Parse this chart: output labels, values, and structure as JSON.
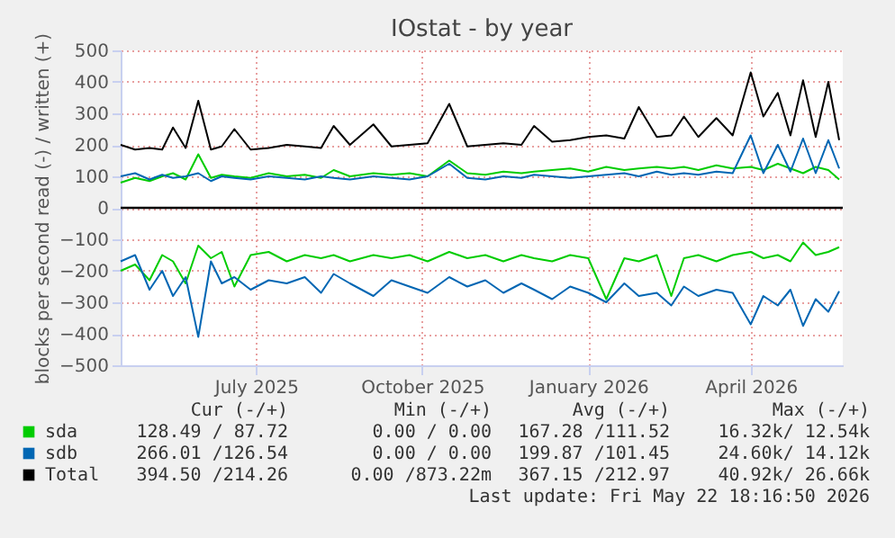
{
  "chart_data": {
    "type": "line",
    "title": "IOstat - by year",
    "ylabel": "blocks per second read (-) / written (+)",
    "x": [
      "2025-04-17",
      "2025-04-25",
      "2025-05-03",
      "2025-05-10",
      "2025-05-16",
      "2025-05-23",
      "2025-05-30",
      "2025-06-06",
      "2025-06-12",
      "2025-06-19",
      "2025-06-28",
      "2025-07-08",
      "2025-07-18",
      "2025-07-28",
      "2025-08-06",
      "2025-08-13",
      "2025-08-22",
      "2025-09-04",
      "2025-09-14",
      "2025-09-24",
      "2025-10-04",
      "2025-10-16",
      "2025-10-26",
      "2025-11-05",
      "2025-11-15",
      "2025-11-25",
      "2025-12-02",
      "2025-12-12",
      "2025-12-22",
      "2026-01-01",
      "2026-01-11",
      "2026-01-21",
      "2026-01-29",
      "2026-02-08",
      "2026-02-16",
      "2026-02-23",
      "2026-03-03",
      "2026-03-13",
      "2026-03-22",
      "2026-04-01",
      "2026-04-08",
      "2026-04-16",
      "2026-04-23",
      "2026-04-30",
      "2026-05-07",
      "2026-05-14",
      "2026-05-20"
    ],
    "xlim": [
      "2025-04-17",
      "2026-05-22"
    ],
    "xticks": [
      {
        "value": "2025-07-01",
        "label": "July 2025"
      },
      {
        "value": "2025-10-01",
        "label": "October 2025"
      },
      {
        "value": "2026-01-01",
        "label": "January 2026"
      },
      {
        "value": "2026-04-01",
        "label": "April 2026"
      }
    ],
    "ylim": [
      -500,
      500
    ],
    "yticks": [
      -500,
      -400,
      -300,
      -200,
      -100,
      0,
      100,
      200,
      300,
      400,
      500
    ],
    "series": [
      {
        "name": "sda",
        "color": "#00cc00",
        "values": [
          80,
          95,
          85,
          100,
          110,
          90,
          170,
          95,
          105,
          100,
          95,
          110,
          100,
          105,
          95,
          120,
          100,
          110,
          105,
          110,
          100,
          150,
          110,
          105,
          115,
          110,
          115,
          120,
          125,
          115,
          130,
          120,
          125,
          130,
          125,
          130,
          120,
          135,
          125,
          130,
          120,
          140,
          125,
          110,
          130,
          120,
          90
        ]
      },
      {
        "name": "sdb",
        "color": "#0066b3",
        "values": [
          100,
          110,
          90,
          105,
          95,
          100,
          110,
          85,
          100,
          95,
          90,
          100,
          95,
          90,
          100,
          95,
          90,
          100,
          95,
          90,
          100,
          140,
          95,
          90,
          100,
          95,
          105,
          100,
          95,
          100,
          105,
          110,
          100,
          115,
          105,
          110,
          105,
          115,
          110,
          230,
          110,
          200,
          115,
          220,
          110,
          215,
          125
        ]
      },
      {
        "name": "Total",
        "color": "#000000",
        "values": [
          200,
          185,
          190,
          185,
          255,
          190,
          340,
          185,
          195,
          250,
          185,
          190,
          200,
          195,
          190,
          260,
          200,
          265,
          195,
          200,
          205,
          330,
          195,
          200,
          205,
          200,
          260,
          210,
          215,
          225,
          230,
          220,
          320,
          225,
          230,
          290,
          225,
          285,
          230,
          430,
          290,
          365,
          230,
          405,
          225,
          400,
          215
        ]
      },
      {
        "color": "#00cc00",
        "values": [
          -200,
          -180,
          -230,
          -150,
          -170,
          -240,
          -120,
          -160,
          -140,
          -250,
          -150,
          -140,
          -170,
          -150,
          -160,
          -150,
          -170,
          -150,
          -160,
          -150,
          -170,
          -140,
          -160,
          -150,
          -170,
          -150,
          -160,
          -170,
          -150,
          -160,
          -290,
          -160,
          -170,
          -150,
          -280,
          -160,
          -150,
          -170,
          -150,
          -140,
          -160,
          -150,
          -170,
          -110,
          -150,
          -140,
          -125
        ]
      },
      {
        "color": "#0066b3",
        "values": [
          -170,
          -150,
          -260,
          -200,
          -280,
          -220,
          -410,
          -170,
          -240,
          -220,
          -260,
          -230,
          -240,
          -220,
          -270,
          -210,
          -240,
          -280,
          -230,
          -250,
          -270,
          -220,
          -250,
          -230,
          -270,
          -240,
          -260,
          -290,
          -250,
          -270,
          -300,
          -240,
          -280,
          -270,
          -310,
          -250,
          -280,
          -260,
          -270,
          -370,
          -280,
          -310,
          -260,
          -375,
          -290,
          -330,
          -265
        ]
      }
    ],
    "ref_lines": [
      {
        "axis": "y",
        "value": 0,
        "color": "#000000"
      }
    ],
    "grid": true,
    "legend": "bottom",
    "annotations": [
      "Cur (-/+)",
      "Min (-/+)",
      "Avg (-/+)",
      "Max (-/+)",
      "128.49 / 87.72",
      "0.00 /  0.00",
      "167.28 /111.52",
      "16.32k/ 12.54k",
      "266.01 /126.54",
      "0.00 /  0.00",
      "199.87 /101.45",
      "24.60k/ 14.12k",
      "394.50 /214.26",
      "0.00 /873.22m",
      "367.15 /212.97",
      "40.92k/ 26.66k",
      "Last update: Fri May 22 18:16:50 2026"
    ]
  }
}
